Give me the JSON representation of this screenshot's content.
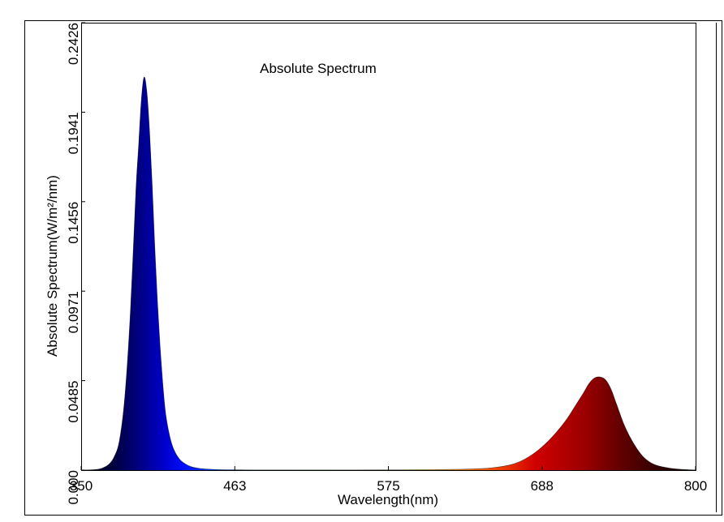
{
  "chart_data": {
    "type": "area",
    "title": "Absolute Spectrum",
    "xlabel": "Wavelength(nm)",
    "ylabel": "Absolute Spectrum(W/m²/nm)",
    "xlim": [
      350,
      800
    ],
    "ylim": [
      0,
      0.2426
    ],
    "xticks": [
      "350",
      "463",
      "575",
      "688",
      "800"
    ],
    "yticks": [
      "0.000",
      "0.0485",
      "0.0971",
      "0.1456",
      "0.1941",
      "0.2426"
    ],
    "grid": false,
    "legend": "none",
    "series": [
      {
        "x": [
          350,
          360,
          365,
          370,
          374,
          378,
          382,
          386,
          390,
          392,
          394,
          396,
          398,
          400,
          402,
          404,
          406,
          408,
          410,
          412,
          415,
          418,
          422,
          426,
          430,
          436,
          442,
          450,
          460,
          475,
          500,
          550,
          600,
          630,
          650,
          665,
          675,
          685,
          695,
          705,
          712,
          718,
          722,
          726,
          730,
          734,
          738,
          742,
          748,
          755,
          762,
          770,
          780,
          790,
          800
        ],
        "y": [
          0,
          0.0003,
          0.001,
          0.003,
          0.007,
          0.016,
          0.04,
          0.085,
          0.15,
          0.175,
          0.2,
          0.213,
          0.206,
          0.185,
          0.155,
          0.12,
          0.09,
          0.065,
          0.045,
          0.03,
          0.018,
          0.011,
          0.006,
          0.0035,
          0.002,
          0.001,
          0.0006,
          0.0003,
          0.0002,
          0.0001,
          0.0001,
          0.0001,
          0.0002,
          0.0005,
          0.0012,
          0.003,
          0.006,
          0.011,
          0.018,
          0.027,
          0.035,
          0.042,
          0.047,
          0.05,
          0.0505,
          0.049,
          0.044,
          0.036,
          0.024,
          0.014,
          0.007,
          0.003,
          0.0012,
          0.0004,
          0.0001
        ]
      }
    ]
  }
}
